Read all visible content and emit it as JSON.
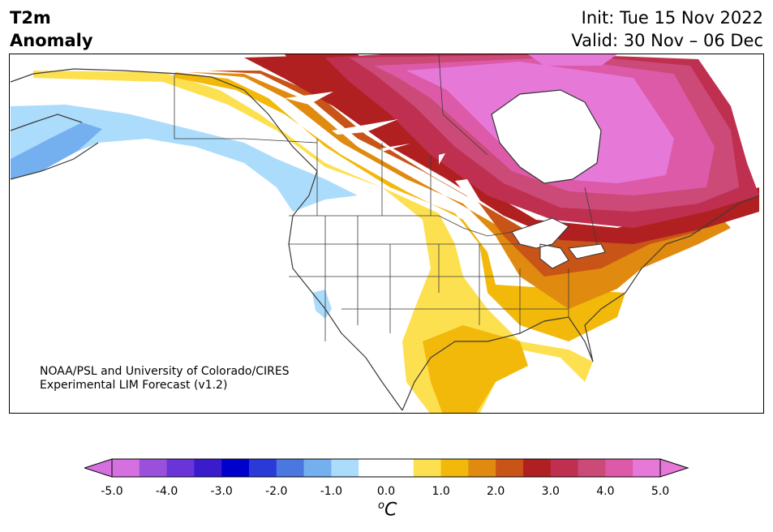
{
  "header": {
    "title_line1": "T2m",
    "title_line2": "Anomaly",
    "init_text": "Init: Tue 15 Nov 2022",
    "valid_text": "Valid: 30 Nov – 06 Dec"
  },
  "credit": {
    "line1": "NOAA/PSL and University of Colorado/CIRES",
    "line2": "Experimental LIM Forecast (v1.2)"
  },
  "colorbar": {
    "ticks": [
      "-5.0",
      "-4.0",
      "-3.0",
      "-2.0",
      "-1.0",
      "0.0",
      "1.0",
      "2.0",
      "3.0",
      "4.0",
      "5.0"
    ],
    "units_main": "C",
    "units_sup": "o",
    "colors": [
      "#d470e0",
      "#9b50dc",
      "#6a35d8",
      "#3a1ccd",
      "#0000cc",
      "#2a3ad8",
      "#4a78e0",
      "#74b0f0",
      "#acdcfb",
      "#ffffff",
      "#ffffff",
      "#fde050",
      "#f2b80a",
      "#e08a10",
      "#c85417",
      "#b02020",
      "#bf3050",
      "#cc4a78",
      "#dc5aa8",
      "#e678d8"
    ],
    "under_color": "#d470e0",
    "over_color": "#e678d8"
  }
}
